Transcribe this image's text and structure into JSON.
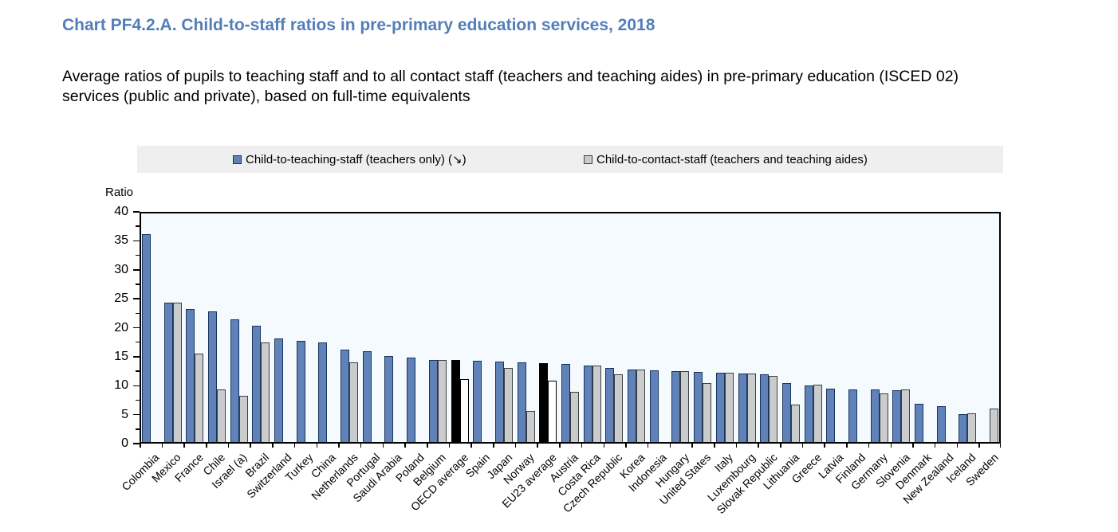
{
  "header": {
    "title": "Chart PF4.2.A. Child-to-staff ratios in pre-primary education services, 2018",
    "subtitle": "Average ratios of pupils to teaching staff and to all contact staff (teachers and teaching aides) in pre-primary education (ISCED 02) services (public and private), based on full-time equivalents"
  },
  "legend": {
    "items": [
      {
        "label": "Child-to-teaching-staff (teachers only) (↘)",
        "series": "teaching"
      },
      {
        "label": "Child-to-contact-staff (teachers and teaching aides)",
        "series": "contact"
      }
    ]
  },
  "colors": {
    "title_blue": "#537eb9",
    "teaching_bar": "#6082b8",
    "teaching_border": "#17365d",
    "contact_bar": "#c9cbcc",
    "contact_border": "#3f3f3f",
    "average_teaching_bar": "#000000",
    "average_contact_bar": "#ffffff",
    "average_border": "#000000",
    "plot_bg": "#f4fafd",
    "legend_bg": "#efefef"
  },
  "chart_data": {
    "type": "bar",
    "title": "Chart PF4.2.A. Child-to-staff ratios in pre-primary education services, 2018",
    "xlabel": "",
    "ylabel": "Ratio",
    "ylim": [
      0,
      40
    ],
    "yticks": [
      0,
      5,
      10,
      15,
      20,
      25,
      30,
      35,
      40
    ],
    "y_minor_tick_step": 2.5,
    "grid": false,
    "legend_position": "top",
    "highlight_categories": [
      "OECD average",
      "EU23 average"
    ],
    "categories": [
      "Colombia",
      "Mexico",
      "France",
      "Chile",
      "Israel (a)",
      "Brazil",
      "Switzerland",
      "Turkey",
      "China",
      "Netherlands",
      "Portugal",
      "Saudi Arabia",
      "Poland",
      "Belgium",
      "OECD average",
      "Spain",
      "Japan",
      "Norway",
      "EU23 average",
      "Austria",
      "Costa Rica",
      "Czech Republic",
      "Korea",
      "Indonesia",
      "Hungary",
      "United States",
      "Italy",
      "Luxembourg",
      "Slovak Republic",
      "Lithuania",
      "Greece",
      "Latvia",
      "Finland",
      "Germany",
      "Slovenia",
      "Denmark",
      "New Zealand",
      "Iceland",
      "Sweden"
    ],
    "series": [
      {
        "name": "Child-to-teaching-staff (teachers only) (↘)",
        "values": [
          36.2,
          24.4,
          23.3,
          22.8,
          21.4,
          20.3,
          18.2,
          17.8,
          17.4,
          16.2,
          15.9,
          15.1,
          14.9,
          14.5,
          14.4,
          14.3,
          14.1,
          14.0,
          13.9,
          13.7,
          13.5,
          13.1,
          12.8,
          12.7,
          12.5,
          12.4,
          12.2,
          12.1,
          11.9,
          10.4,
          10.1,
          9.5,
          9.4,
          9.4,
          9.2,
          6.9,
          6.5,
          5.1,
          null
        ]
      },
      {
        "name": "Child-to-contact-staff (teachers and teaching aides)",
        "values": [
          null,
          24.4,
          15.5,
          9.4,
          8.3,
          17.5,
          null,
          null,
          null,
          14.0,
          null,
          null,
          null,
          14.5,
          11.1,
          null,
          13.1,
          5.6,
          10.9,
          8.9,
          13.5,
          12.0,
          12.8,
          null,
          12.5,
          10.4,
          12.2,
          12.1,
          11.7,
          6.7,
          10.2,
          null,
          null,
          8.6,
          9.3,
          null,
          null,
          5.2,
          6.1
        ]
      }
    ]
  }
}
